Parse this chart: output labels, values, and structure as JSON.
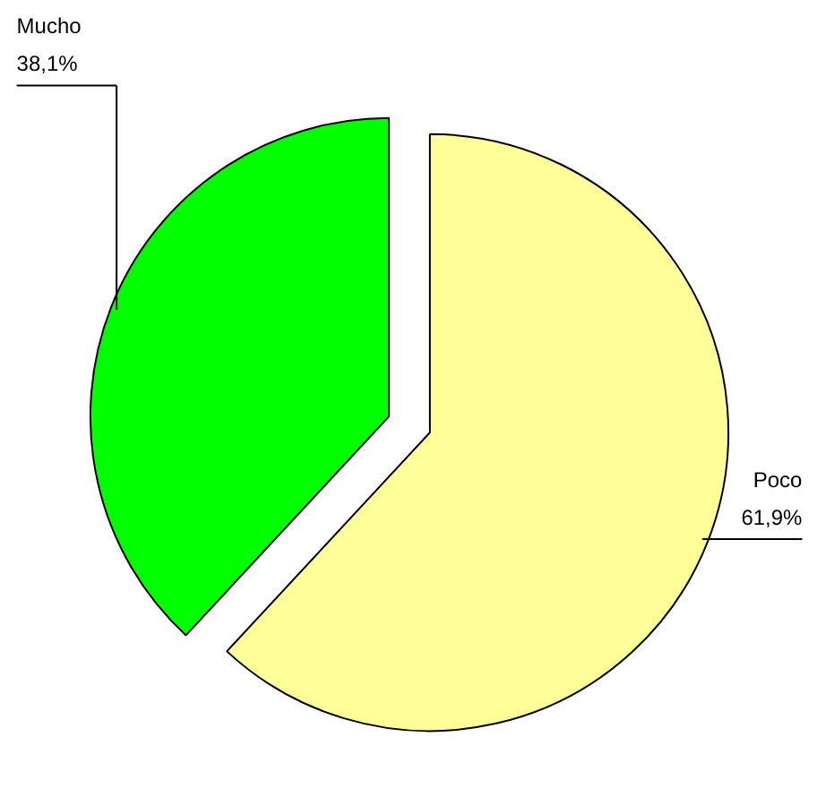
{
  "chart_data": {
    "type": "pie",
    "categories": [
      "Poco",
      "Mucho"
    ],
    "values": [
      61.9,
      38.1
    ],
    "colors": [
      "#ffff99",
      "#00ff00"
    ],
    "value_labels": [
      "61,9%",
      "38,1%"
    ]
  }
}
